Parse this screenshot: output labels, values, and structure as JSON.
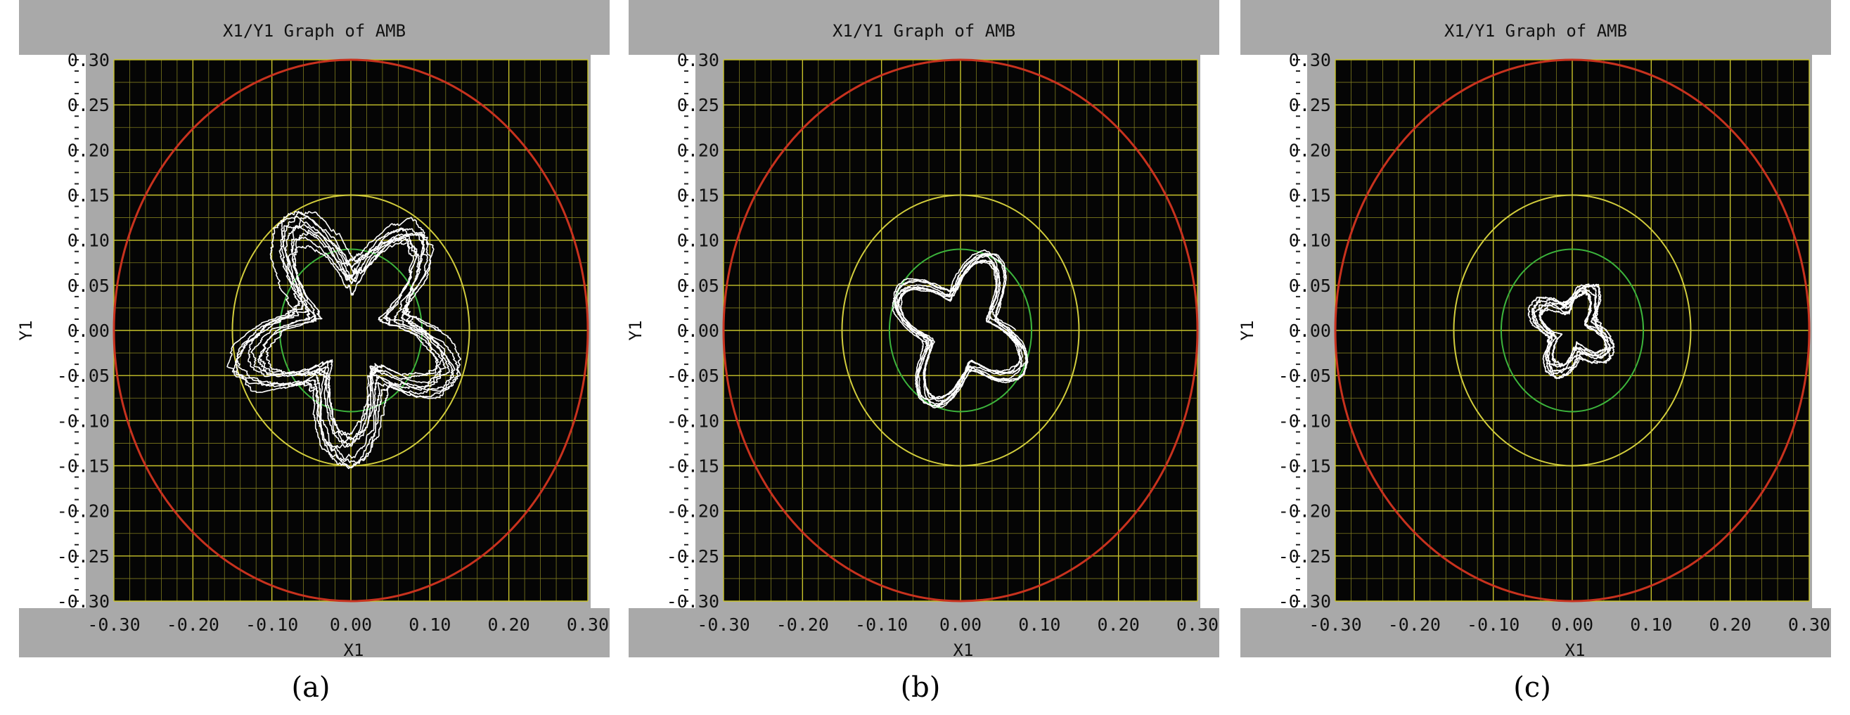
{
  "colors": {
    "window_bg": "#a9a9a9",
    "plot_bg": "#050505",
    "grid_major": "#c8c32a",
    "grid_minor": "#7d7a1e",
    "red_limit": "#c8321e",
    "yellow_limit": "#d2cd3c",
    "green_limit": "#3cb43c",
    "trace": "#ffffff"
  },
  "chart_data": [
    {
      "type": "scatter",
      "panel_label": "(a)",
      "title": "X1/Y1 Graph of AMB",
      "xlabel": "X1",
      "ylabel": "Y1",
      "xlim": [
        -0.3,
        0.3
      ],
      "ylim": [
        -0.3,
        0.3
      ],
      "grid": true,
      "x_ticks": [
        "-0.30",
        "-0.20",
        "-0.10",
        "0.00",
        "0.10",
        "0.20",
        "0.30"
      ],
      "y_ticks": [
        "0.30",
        "0.25",
        "0.20",
        "0.15",
        "0.10",
        "0.05",
        "0.00",
        "-0.05",
        "-0.10",
        "-0.15",
        "-0.20",
        "-0.25",
        "-0.30"
      ],
      "circles": [
        {
          "name": "red limit",
          "radius": 0.3,
          "color": "#c8321e"
        },
        {
          "name": "yellow limit",
          "radius": 0.15,
          "color": "#d2cd3c"
        },
        {
          "name": "green limit",
          "radius": 0.09,
          "color": "#3cb43c"
        }
      ],
      "orbit": {
        "center": [
          0.0,
          0.0
        ],
        "r_base": 0.095,
        "r_var": 0.035,
        "lobes": 5,
        "loops": 9,
        "noise": 0.018,
        "seed": 11
      }
    },
    {
      "type": "scatter",
      "panel_label": "(b)",
      "title": "X1/Y1 Graph of AMB",
      "xlabel": "X1",
      "ylabel": "Y1",
      "xlim": [
        -0.3,
        0.3
      ],
      "ylim": [
        -0.3,
        0.3
      ],
      "grid": true,
      "x_ticks": [
        "-0.30",
        "-0.20",
        "-0.10",
        "0.00",
        "0.10",
        "0.20",
        "0.30"
      ],
      "y_ticks": [
        "0.30",
        "0.25",
        "0.20",
        "0.15",
        "0.10",
        "0.05",
        "0.00",
        "-0.05",
        "-0.10",
        "-0.15",
        "-0.20",
        "-0.25",
        "-0.30"
      ],
      "circles": [
        {
          "name": "red limit",
          "radius": 0.3,
          "color": "#c8321e"
        },
        {
          "name": "yellow limit",
          "radius": 0.15,
          "color": "#d2cd3c"
        },
        {
          "name": "green limit",
          "radius": 0.09,
          "color": "#3cb43c"
        }
      ],
      "orbit": {
        "center": [
          0.0,
          0.0
        ],
        "r_base": 0.065,
        "r_var": 0.023,
        "lobes": 4,
        "loops": 8,
        "noise": 0.006,
        "seed": 23
      }
    },
    {
      "type": "scatter",
      "panel_label": "(c)",
      "title": "X1/Y1 Graph of AMB",
      "xlabel": "X1",
      "ylabel": "Y1",
      "xlim": [
        -0.3,
        0.3
      ],
      "ylim": [
        -0.3,
        0.3
      ],
      "grid": true,
      "x_ticks": [
        "-0.30",
        "-0.20",
        "-0.10",
        "0.00",
        "0.10",
        "0.20",
        "0.30"
      ],
      "y_ticks": [
        "0.30",
        "0.25",
        "0.20",
        "0.15",
        "0.10",
        "0.05",
        "0.00",
        "-0.05",
        "-0.10",
        "-0.15",
        "-0.20",
        "-0.25",
        "-0.30"
      ],
      "circles": [
        {
          "name": "red limit",
          "radius": 0.3,
          "color": "#c8321e"
        },
        {
          "name": "yellow limit",
          "radius": 0.15,
          "color": "#d2cd3c"
        },
        {
          "name": "green limit",
          "radius": 0.09,
          "color": "#3cb43c"
        }
      ],
      "orbit": {
        "center": [
          0.0,
          0.0
        ],
        "r_base": 0.038,
        "r_var": 0.012,
        "lobes": 4,
        "loops": 7,
        "noise": 0.008,
        "seed": 37
      }
    }
  ]
}
